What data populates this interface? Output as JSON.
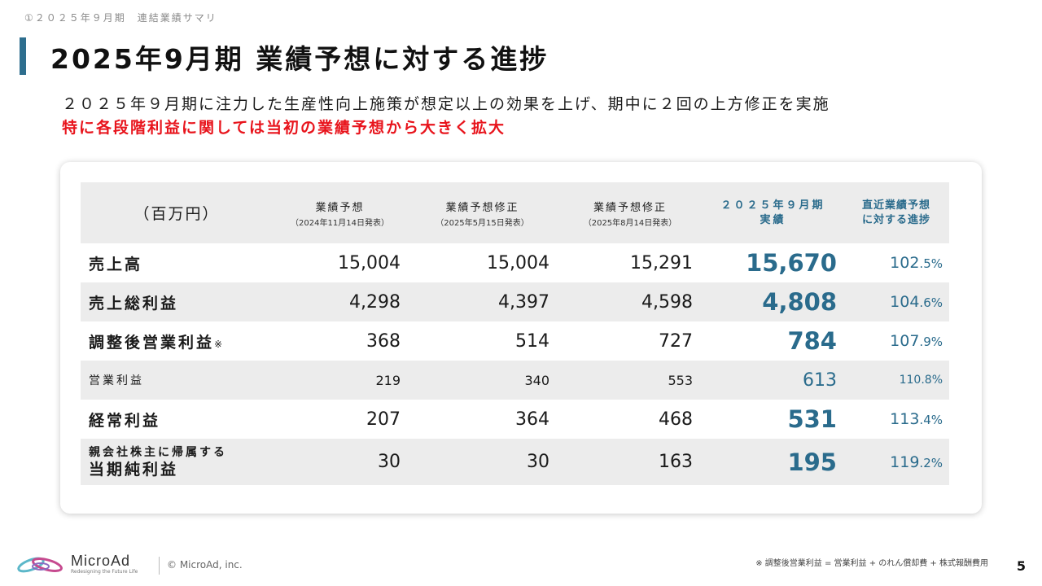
{
  "header": {
    "breadcrumb": "①２０２５年９月期　連結業績サマリ",
    "title": "2025年9月期 業績予想に対する進捗"
  },
  "summary": {
    "line1": "２０２５年９月期に注力した生産性向上施策が想定以上の効果を上げ、期中に２回の上方修正を実施",
    "line2": "特に各段階利益に関しては当初の業績予想から大きく拡大"
  },
  "table": {
    "unit": "（百万円）",
    "columns": [
      {
        "main": "業績予想",
        "sub": "（2024年11月14日発表）"
      },
      {
        "main": "業績予想修正",
        "sub": "（2025年5月15日発表）"
      },
      {
        "main": "業績予想修正",
        "sub": "（2025年8月14日発表）"
      },
      {
        "main1": "２０２５年９月期",
        "main2": "実績"
      },
      {
        "main1": "直近業績予想",
        "main2": "に対する進捗"
      }
    ],
    "rows": [
      {
        "label": "売上高",
        "f1": "15,004",
        "f2": "15,004",
        "f3": "15,291",
        "actual": "15,670",
        "pct_int": "102",
        "pct_dec": ".5%"
      },
      {
        "label": "売上総利益",
        "f1": "4,298",
        "f2": "4,397",
        "f3": "4,598",
        "actual": "4,808",
        "pct_int": "104",
        "pct_dec": ".6%"
      },
      {
        "label": "調整後営業利益",
        "note": "※",
        "f1": "368",
        "f2": "514",
        "f3": "727",
        "actual": "784",
        "pct_int": "107",
        "pct_dec": ".9%"
      },
      {
        "label": "営業利益",
        "f1": "219",
        "f2": "340",
        "f3": "553",
        "actual": "613",
        "pct": "110.8%"
      },
      {
        "label": "経常利益",
        "f1": "207",
        "f2": "364",
        "f3": "468",
        "actual": "531",
        "pct_int": "113",
        "pct_dec": ".4%"
      },
      {
        "label_pre": "親会社株主に帰属する",
        "label": "当期純利益",
        "f1": "30",
        "f2": "30",
        "f3": "163",
        "actual": "195",
        "pct_int": "119",
        "pct_dec": ".2%"
      }
    ]
  },
  "footer": {
    "brand": "MicroAd",
    "tagline": "Redesigning the Future Life",
    "copyright": "© MicroAd, inc.",
    "footnote": "※ 調整後営業利益 = 営業利益 + のれん償却費 + 株式報酬費用",
    "page_number": "5"
  },
  "colors": {
    "accent": "#2a6b8c",
    "highlight": "#e8141c",
    "row_shade": "#ececec"
  }
}
